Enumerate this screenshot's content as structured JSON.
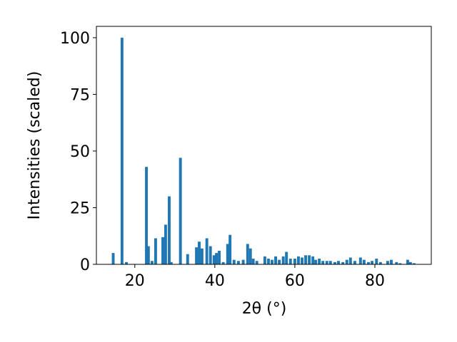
{
  "chart_data": {
    "type": "bar",
    "xlabel": "2θ (°)",
    "ylabel": "Intensities (scaled)",
    "color": "#1f77b4",
    "x": [
      14.6,
      16.8,
      17.9,
      22.9,
      23.4,
      24.3,
      25.2,
      27.0,
      27.7,
      28.6,
      29.1,
      31.4,
      33.2,
      35.4,
      36.1,
      36.8,
      38.0,
      38.9,
      39.8,
      40.4,
      41.1,
      42.1,
      43.2,
      43.8,
      44.8,
      45.9,
      47.1,
      48.2,
      48.9,
      49.6,
      50.5,
      52.5,
      53.4,
      54.3,
      55.2,
      56.1,
      57.1,
      57.9,
      58.9,
      60.0,
      60.9,
      61.8,
      62.7,
      63.6,
      64.5,
      65.2,
      66.1,
      67.0,
      68.0,
      68.9,
      70.0,
      70.9,
      72.0,
      73.0,
      73.9,
      75.0,
      76.4,
      77.3,
      78.4,
      79.3,
      80.4,
      81.4,
      83.2,
      84.1,
      85.4,
      86.3,
      88.2,
      88.9,
      89.8
    ],
    "values": [
      5,
      100,
      1,
      43,
      8,
      1.5,
      11.5,
      12,
      17.5,
      30,
      1,
      47,
      4.5,
      7.5,
      10,
      7,
      11.5,
      8,
      4,
      5,
      6,
      1,
      9,
      13,
      2,
      1.5,
      2,
      9,
      7,
      2.5,
      1.5,
      3.5,
      2.5,
      2,
      3.5,
      2,
      3.5,
      5.5,
      2.5,
      2.5,
      3.5,
      3,
      4,
      4,
      3.5,
      2,
      2.5,
      1.5,
      1.5,
      1.5,
      1,
      1.5,
      1,
      2,
      3,
      1.5,
      3,
      2,
      1,
      1.5,
      2.5,
      1,
      1.5,
      2,
      1,
      0.5,
      2,
      1,
      0.5
    ],
    "xlim": [
      10.4,
      94.1
    ],
    "ylim": [
      0,
      105
    ],
    "xticks": [
      20,
      40,
      60,
      80
    ],
    "yticks": [
      0,
      25,
      50,
      75,
      100
    ]
  }
}
